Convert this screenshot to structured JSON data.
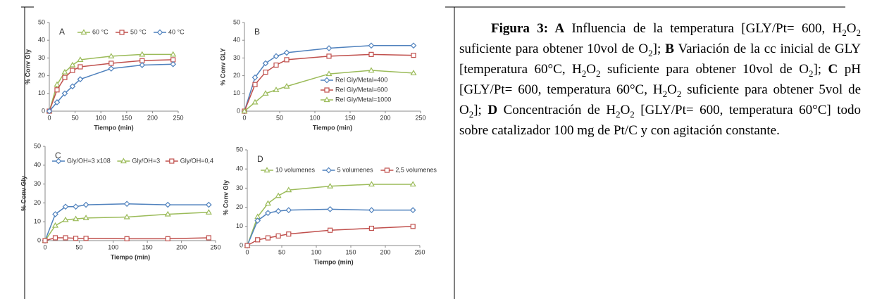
{
  "chart_data": [
    {
      "type": "line",
      "title": "A",
      "ylabel": "% Conv Gly",
      "xlabel": "Tiempo (min)",
      "legend": "top",
      "x": [
        0,
        15,
        30,
        45,
        60,
        120,
        180,
        240
      ],
      "xlim": [
        0,
        250
      ],
      "xticks": [
        0,
        50,
        100,
        150,
        200,
        250
      ],
      "ylim": [
        0,
        50
      ],
      "yticks": [
        0,
        10,
        20,
        30,
        40,
        50
      ],
      "series": [
        {
          "name": "60 °C",
          "color": "#9bbb59",
          "marker": "triangle",
          "values": [
            0,
            15,
            22,
            26,
            29,
            31,
            32,
            32
          ]
        },
        {
          "name": "50 °C",
          "color": "#c0504d",
          "marker": "square",
          "values": [
            0,
            12,
            19,
            23,
            25,
            27,
            28.5,
            29
          ]
        },
        {
          "name": "40 °C",
          "color": "#4f81bd",
          "marker": "diamond",
          "values": [
            0,
            5,
            10,
            14,
            18,
            24,
            26,
            26.5
          ]
        }
      ]
    },
    {
      "type": "line",
      "title": "B",
      "ylabel": "% Conv GLY",
      "xlabel": "Tiempo (min)",
      "legend": "lower right",
      "x": [
        0,
        15,
        30,
        45,
        60,
        120,
        180,
        240
      ],
      "xlim": [
        0,
        250
      ],
      "xticks": [
        0,
        50,
        100,
        150,
        200,
        250
      ],
      "ylim": [
        0,
        50
      ],
      "yticks": [
        0,
        10,
        20,
        30,
        40,
        50
      ],
      "series": [
        {
          "name": "Rel Gly/Metal=400",
          "color": "#4f81bd",
          "marker": "diamond",
          "values": [
            0,
            19,
            27,
            31,
            33,
            35.5,
            37,
            37
          ]
        },
        {
          "name": "Rel Gly/Metal=600",
          "color": "#c0504d",
          "marker": "square",
          "values": [
            0,
            15,
            22,
            26,
            29,
            31,
            32,
            31.5
          ]
        },
        {
          "name": "Rel Gly/Metal=1000",
          "color": "#9bbb59",
          "marker": "triangle",
          "values": [
            0,
            5,
            10,
            12,
            14,
            21,
            23,
            21.5
          ]
        }
      ]
    },
    {
      "type": "line",
      "title": "C",
      "ylabel": "% Conv Gly",
      "xlabel": "Tiempo (min)",
      "legend": "top",
      "x": [
        0,
        15,
        30,
        45,
        60,
        120,
        180,
        240
      ],
      "xlim": [
        0,
        250
      ],
      "xticks": [
        0,
        50,
        100,
        150,
        200,
        250
      ],
      "ylim": [
        0,
        50
      ],
      "yticks": [
        0,
        10,
        20,
        30,
        40,
        50
      ],
      "series": [
        {
          "name": "Gly/OH=3 x108",
          "color": "#4f81bd",
          "marker": "diamond",
          "values": [
            0,
            14,
            18,
            18,
            19,
            19.5,
            19,
            19
          ]
        },
        {
          "name": "Gly/OH=3",
          "color": "#9bbb59",
          "marker": "triangle",
          "values": [
            0,
            8,
            11,
            11.5,
            12,
            12.5,
            14,
            15
          ]
        },
        {
          "name": "Gly/OH=0,4",
          "color": "#c0504d",
          "marker": "square",
          "values": [
            0,
            1.5,
            1.5,
            1.2,
            1.2,
            1,
            1,
            1.5
          ]
        }
      ]
    },
    {
      "type": "line",
      "title": "D",
      "ylabel": "% Conv Gly",
      "xlabel": "Tiempo (min)",
      "legend": "top",
      "x": [
        0,
        15,
        30,
        45,
        60,
        120,
        180,
        240
      ],
      "xlim": [
        0,
        250
      ],
      "xticks": [
        0,
        50,
        100,
        150,
        200,
        250
      ],
      "ylim": [
        0,
        50
      ],
      "yticks": [
        0,
        10,
        20,
        30,
        40,
        50
      ],
      "series": [
        {
          "name": "10 volumenes",
          "color": "#9bbb59",
          "marker": "triangle",
          "values": [
            0,
            15,
            22,
            26,
            29,
            31,
            32,
            32
          ]
        },
        {
          "name": "5 volumenes",
          "color": "#4f81bd",
          "marker": "diamond",
          "values": [
            0,
            13,
            17,
            18,
            18.5,
            19,
            18.5,
            18.5
          ]
        },
        {
          "name": "2,5 volumenes",
          "color": "#c0504d",
          "marker": "square",
          "values": [
            0,
            3,
            4,
            5,
            6,
            8,
            9,
            10
          ]
        }
      ]
    }
  ],
  "caption": {
    "runs": [
      {
        "b": "Figura 3: A"
      },
      {
        "t": " Influencia de la temperatura [GLY/Pt= 600, H"
      },
      {
        "sub": "2"
      },
      {
        "t": "O"
      },
      {
        "sub": "2"
      },
      {
        "t": " suficiente para obtener 10vol de O"
      },
      {
        "sub": "2"
      },
      {
        "t": "]; "
      },
      {
        "b": "B"
      },
      {
        "t": " Variación de la cc inicial de GLY [temperatura 60°C, H"
      },
      {
        "sub": "2"
      },
      {
        "t": "O"
      },
      {
        "sub": "2"
      },
      {
        "t": " suficiente para obtener 10vol de O"
      },
      {
        "sub": "2"
      },
      {
        "t": "]; "
      },
      {
        "b": "C"
      },
      {
        "t": " pH [GLY/Pt= 600, temperatura 60°C, H"
      },
      {
        "sub": "2"
      },
      {
        "t": "O"
      },
      {
        "sub": "2"
      },
      {
        "t": " suficiente para obtener 5vol de O"
      },
      {
        "sub": "2"
      },
      {
        "t": "]; "
      },
      {
        "b": "D"
      },
      {
        "t": " Concentración de H"
      },
      {
        "sub": "2"
      },
      {
        "t": "O"
      },
      {
        "sub": "2"
      },
      {
        "t": " [GLY/Pt= 600, temperatura 60°C] todo sobre catalizador 100 mg de Pt/C y con agitación constante."
      }
    ]
  }
}
